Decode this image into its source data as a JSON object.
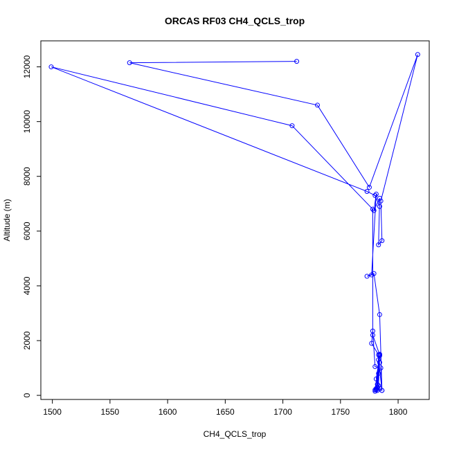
{
  "chart_data": {
    "type": "line",
    "title": "ORCAS RF03 CH4_QCLS_trop",
    "xlabel": "CH4_QCLS_trop",
    "ylabel": "Altitude (m)",
    "xlim": [
      1490,
      1827
    ],
    "ylim": [
      -150,
      12950
    ],
    "x_ticks": [
      1500,
      1550,
      1600,
      1650,
      1700,
      1750,
      1800
    ],
    "y_ticks": [
      0,
      2000,
      4000,
      6000,
      8000,
      10000,
      12000
    ],
    "grid": false,
    "line_color": "#0000ff",
    "marker": "open-circle",
    "series": [
      {
        "x": [
          1712,
          1567,
          1730,
          1775,
          1817,
          1785,
          1786,
          1783,
          1784,
          1779,
          1781,
          1777,
          1773,
          1779,
          1784,
          1786,
          1785,
          1780,
          1778,
          1777,
          1783,
          1782,
          1780,
          1784,
          1783,
          1784,
          1780,
          1782,
          1783,
          1786,
          1781,
          1784,
          1781,
          1783,
          1784,
          1782,
          1781,
          1784,
          1778,
          1778,
          1708,
          1499,
          1773,
          1780,
          1784
        ],
        "y": [
          12200,
          12150,
          10600,
          7600,
          12450,
          7100,
          5650,
          5500,
          7200,
          6750,
          7350,
          4400,
          4350,
          4450,
          2950,
          180,
          1000,
          1050,
          2350,
          1900,
          1480,
          180,
          150,
          250,
          350,
          1500,
          200,
          400,
          1300,
          180,
          250,
          1450,
          600,
          800,
          1200,
          300,
          200,
          1480,
          2200,
          6800,
          9850,
          12000,
          7450,
          7300,
          6900
        ]
      }
    ]
  }
}
